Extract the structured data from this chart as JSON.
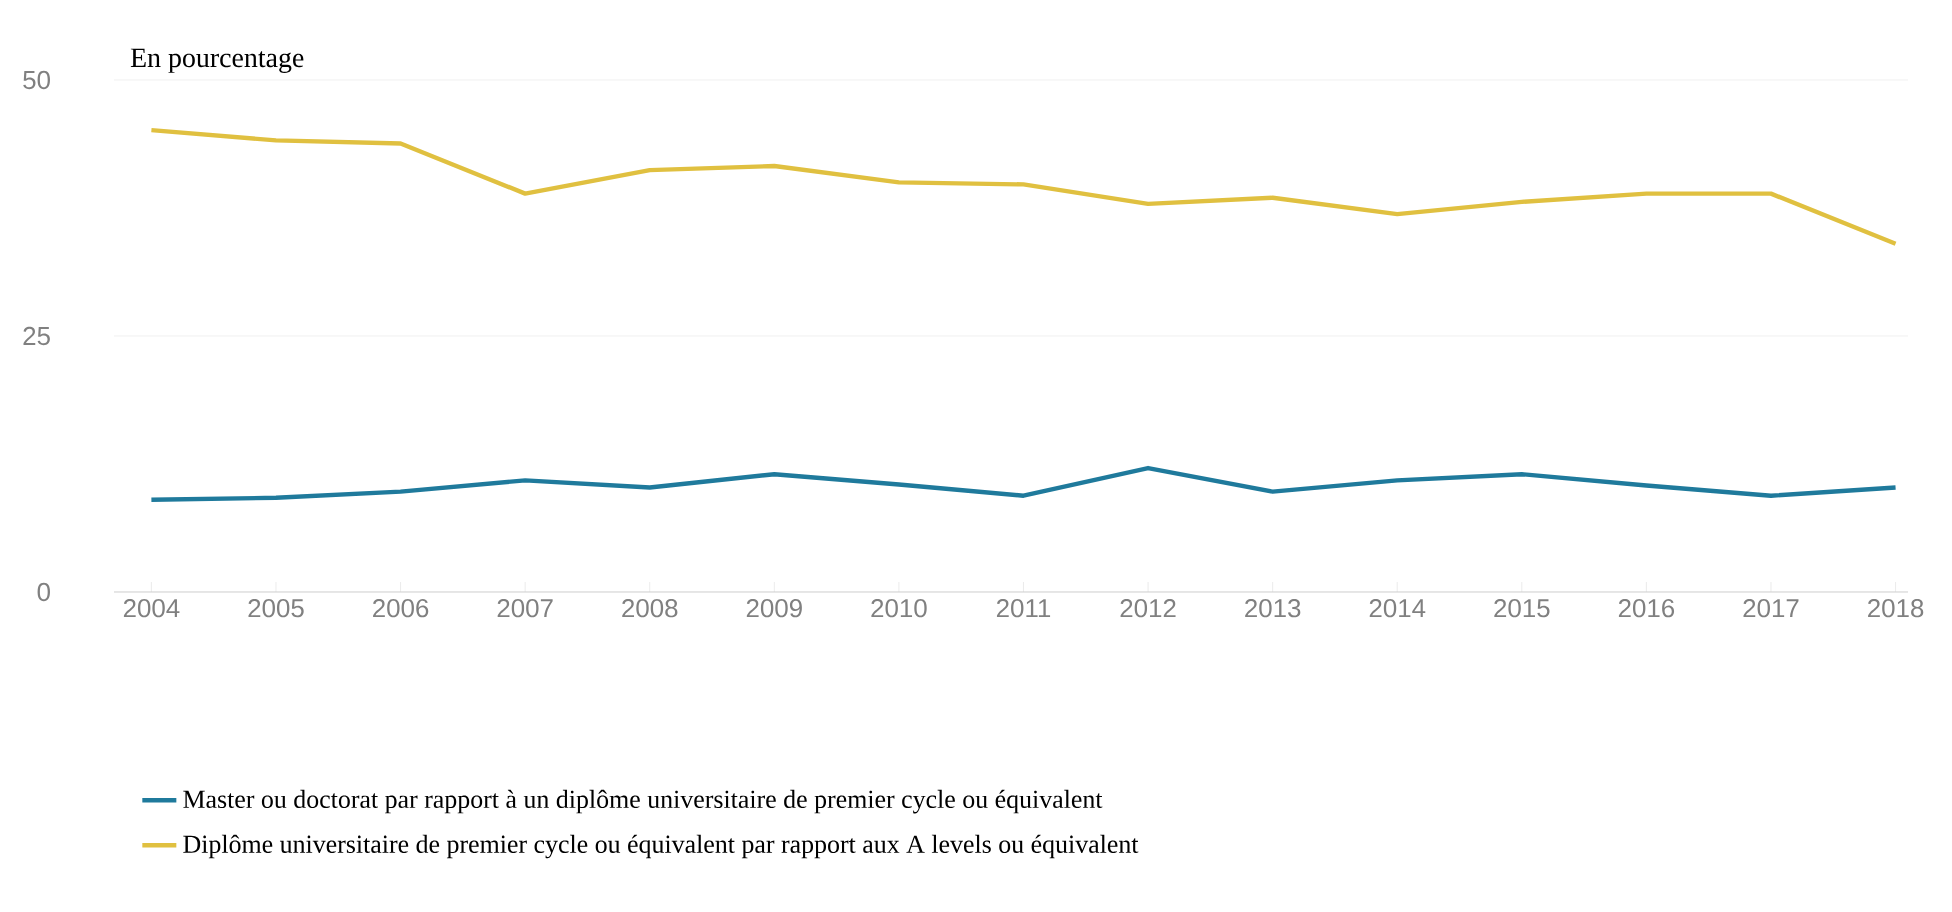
{
  "chart_data": {
    "type": "line",
    "ylabel": "En pourcentage",
    "categories": [
      "2004",
      "2005",
      "2006",
      "2007",
      "2008",
      "2009",
      "2010",
      "2011",
      "2012",
      "2013",
      "2014",
      "2015",
      "2016",
      "2017",
      "2018"
    ],
    "series": [
      {
        "name": "Master ou doctorat par rapport à un diplôme universitaire de premier cycle ou équivalent",
        "color": "#1f7a9c",
        "values": [
          9.0,
          9.2,
          9.8,
          10.9,
          10.2,
          11.5,
          10.5,
          9.4,
          12.1,
          9.8,
          10.9,
          11.5,
          10.4,
          9.4,
          10.2
        ]
      },
      {
        "name": "Diplôme universitaire de premier cycle ou équivalent par rapport aux A levels ou équivalent",
        "color": "#e0c040",
        "values": [
          45.1,
          44.1,
          43.8,
          38.9,
          41.2,
          41.6,
          40.0,
          39.8,
          37.9,
          38.5,
          36.9,
          38.1,
          38.9,
          38.9,
          34.0
        ]
      }
    ],
    "ylim": [
      0,
      50
    ],
    "yticks": [
      0,
      25,
      50
    ],
    "grid": "y",
    "legend": "bottom",
    "marker": "none",
    "line_style": "solid"
  }
}
